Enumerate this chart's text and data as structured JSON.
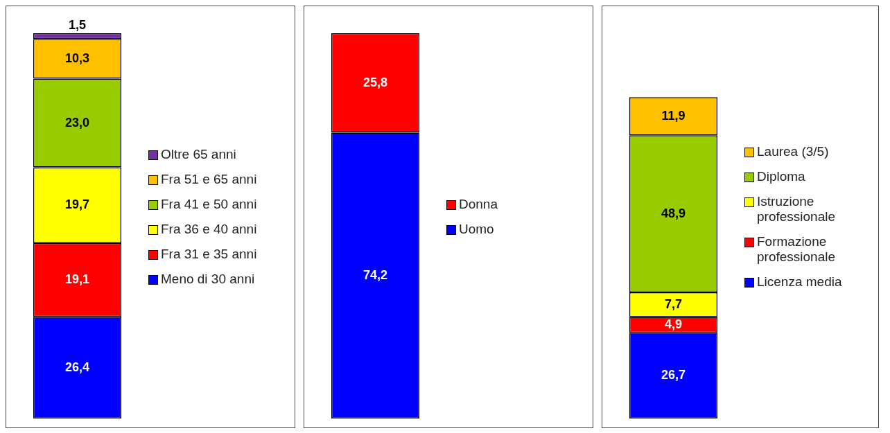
{
  "chart_data": [
    {
      "type": "bar",
      "stacked": true,
      "categories": [
        null
      ],
      "tick_labels": false,
      "legend": "right",
      "series": [
        {
          "name": "Meno di 30 anni",
          "color": "#0000ff",
          "values": [
            26.4
          ],
          "value_labels": [
            "26,4"
          ]
        },
        {
          "name": "Fra 31 e 35 anni",
          "color": "#ff0000",
          "values": [
            19.1
          ],
          "value_labels": [
            "19,1"
          ]
        },
        {
          "name": "Fra 36 e 40 anni",
          "color": "#ffff00",
          "values": [
            19.7
          ],
          "value_labels": [
            "19,7"
          ]
        },
        {
          "name": "Fra 41 e 50 anni",
          "color": "#99cc00",
          "values": [
            23.0
          ],
          "value_labels": [
            "23,0"
          ]
        },
        {
          "name": "Fra 51 e 65 anni",
          "color": "#ffc000",
          "values": [
            10.3
          ],
          "value_labels": [
            "10,3"
          ]
        },
        {
          "name": "Oltre 65 anni",
          "color": "#7030a0",
          "values": [
            1.5
          ],
          "value_labels": [
            "1,5"
          ]
        }
      ]
    },
    {
      "type": "bar",
      "stacked": true,
      "categories": [
        null
      ],
      "tick_labels": false,
      "legend": "right",
      "series": [
        {
          "name": "Uomo",
          "color": "#0000ff",
          "values": [
            74.2
          ],
          "value_labels": [
            "74,2"
          ]
        },
        {
          "name": "Donna",
          "color": "#ff0000",
          "values": [
            25.8
          ],
          "value_labels": [
            "25,8"
          ]
        }
      ]
    },
    {
      "type": "bar",
      "stacked": true,
      "categories": [
        null
      ],
      "tick_labels": false,
      "legend": "right",
      "series": [
        {
          "name": "Licenza media",
          "color": "#0000ff",
          "values": [
            26.7
          ],
          "value_labels": [
            "26,7"
          ]
        },
        {
          "name": "Formazione professionale",
          "color": "#ff0000",
          "values": [
            4.9
          ],
          "value_labels": [
            "4,9"
          ]
        },
        {
          "name": "Istruzione professionale",
          "color": "#ffff00",
          "values": [
            7.7
          ],
          "value_labels": [
            "7,7"
          ]
        },
        {
          "name": "Diploma",
          "color": "#99cc00",
          "values": [
            48.9
          ],
          "value_labels": [
            "48,9"
          ]
        },
        {
          "name": "Laurea (3/5)",
          "color": "#ffc000",
          "values": [
            11.9
          ],
          "value_labels": [
            "11,9"
          ]
        }
      ]
    }
  ]
}
